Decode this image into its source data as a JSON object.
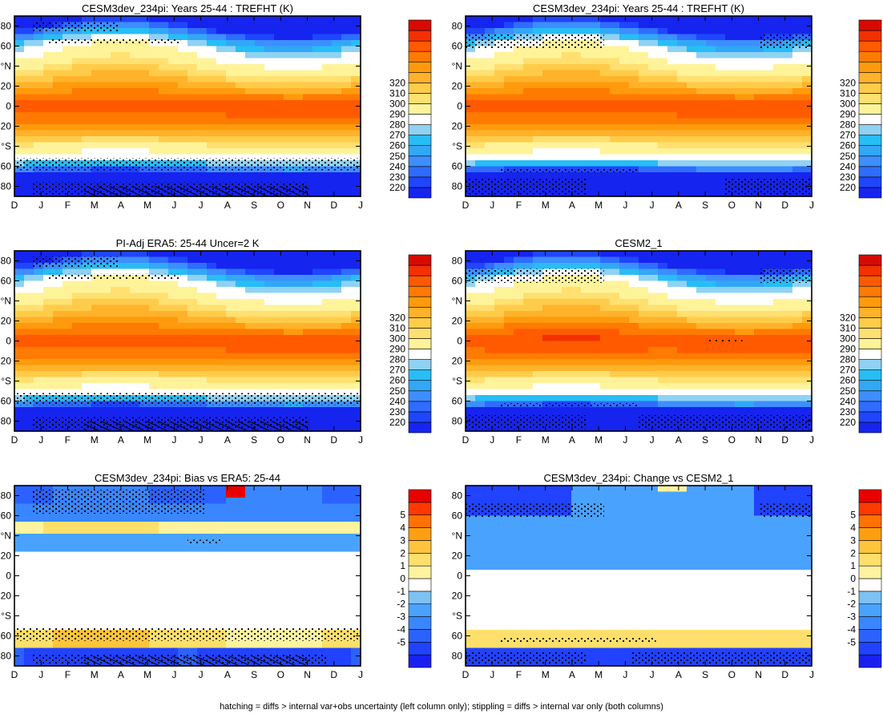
{
  "figure": {
    "footer": "hatching = diffs > internal var+obs uncertainty (left column only); stippling = diffs > internal var only (both columns)"
  },
  "chart_data": [
    {
      "type": "heatmap",
      "title": "CESM3dev_234pi: Years 25-44 : TREFHT (K)",
      "x_ticks": [
        "D",
        "J",
        "F",
        "M",
        "A",
        "M",
        "J",
        "J",
        "A",
        "S",
        "O",
        "N",
        "D",
        "J"
      ],
      "y_ticks": [
        "80",
        "60",
        "°N",
        "20",
        "0",
        "20",
        "°S",
        "60",
        "80"
      ],
      "ylim": [
        -90,
        90
      ],
      "colorbar": [
        220,
        230,
        240,
        250,
        260,
        270,
        280,
        290,
        300,
        310,
        320
      ],
      "profile": "abs_a"
    },
    {
      "type": "heatmap",
      "title": "CESM3dev_234pi: Years 25-44 : TREFHT (K)",
      "x_ticks": [
        "D",
        "J",
        "F",
        "M",
        "A",
        "M",
        "J",
        "J",
        "A",
        "S",
        "O",
        "N",
        "D",
        "J"
      ],
      "y_ticks": [
        "80",
        "60",
        "°N",
        "20",
        "0",
        "20",
        "°S",
        "60",
        "80"
      ],
      "ylim": [
        -90,
        90
      ],
      "colorbar": [
        220,
        230,
        240,
        250,
        260,
        270,
        280,
        290,
        300,
        310,
        320
      ],
      "profile": "abs_b"
    },
    {
      "type": "heatmap",
      "title": "PI-Adj ERA5: 25-44 Uncer=2 K",
      "x_ticks": [
        "D",
        "J",
        "F",
        "M",
        "A",
        "M",
        "J",
        "J",
        "A",
        "S",
        "O",
        "N",
        "D",
        "J"
      ],
      "y_ticks": [
        "80",
        "60",
        "°N",
        "20",
        "0",
        "20",
        "°S",
        "60",
        "80"
      ],
      "ylim": [
        -90,
        90
      ],
      "colorbar": [
        220,
        230,
        240,
        250,
        260,
        270,
        280,
        290,
        300,
        310,
        320
      ],
      "profile": "abs_a"
    },
    {
      "type": "heatmap",
      "title": "CESM2_1",
      "x_ticks": [
        "D",
        "J",
        "F",
        "M",
        "A",
        "M",
        "J",
        "J",
        "A",
        "S",
        "O",
        "N",
        "D",
        "J"
      ],
      "y_ticks": [
        "80",
        "60",
        "°N",
        "20",
        "0",
        "20",
        "°S",
        "60",
        "80"
      ],
      "ylim": [
        -90,
        90
      ],
      "colorbar": [
        220,
        230,
        240,
        250,
        260,
        270,
        280,
        290,
        300,
        310,
        320
      ],
      "profile": "abs_c"
    },
    {
      "type": "heatmap",
      "title": "CESM3dev_234pi: Bias vs ERA5: 25-44",
      "x_ticks": [
        "D",
        "J",
        "F",
        "M",
        "A",
        "M",
        "J",
        "J",
        "A",
        "S",
        "O",
        "N",
        "D",
        "J"
      ],
      "y_ticks": [
        "80",
        "60",
        "°N",
        "20",
        "0",
        "20",
        "°S",
        "60",
        "80"
      ],
      "ylim": [
        -90,
        90
      ],
      "colorbar": [
        "-5",
        "-4",
        "-3",
        "-2",
        "-1",
        "0",
        "1",
        "2",
        "3",
        "4",
        "5"
      ],
      "profile": "diff_a"
    },
    {
      "type": "heatmap",
      "title": "CESM3dev_234pi: Change vs CESM2_1",
      "x_ticks": [
        "D",
        "J",
        "F",
        "M",
        "A",
        "M",
        "J",
        "J",
        "A",
        "S",
        "O",
        "N",
        "D",
        "J"
      ],
      "y_ticks": [
        "80",
        "60",
        "°N",
        "20",
        "0",
        "20",
        "°S",
        "60",
        "80"
      ],
      "ylim": [
        -90,
        90
      ],
      "colorbar": [
        "-5",
        "-4",
        "-3",
        "-2",
        "-1",
        "0",
        "1",
        "2",
        "3",
        "4",
        "5"
      ],
      "profile": "diff_b"
    }
  ]
}
